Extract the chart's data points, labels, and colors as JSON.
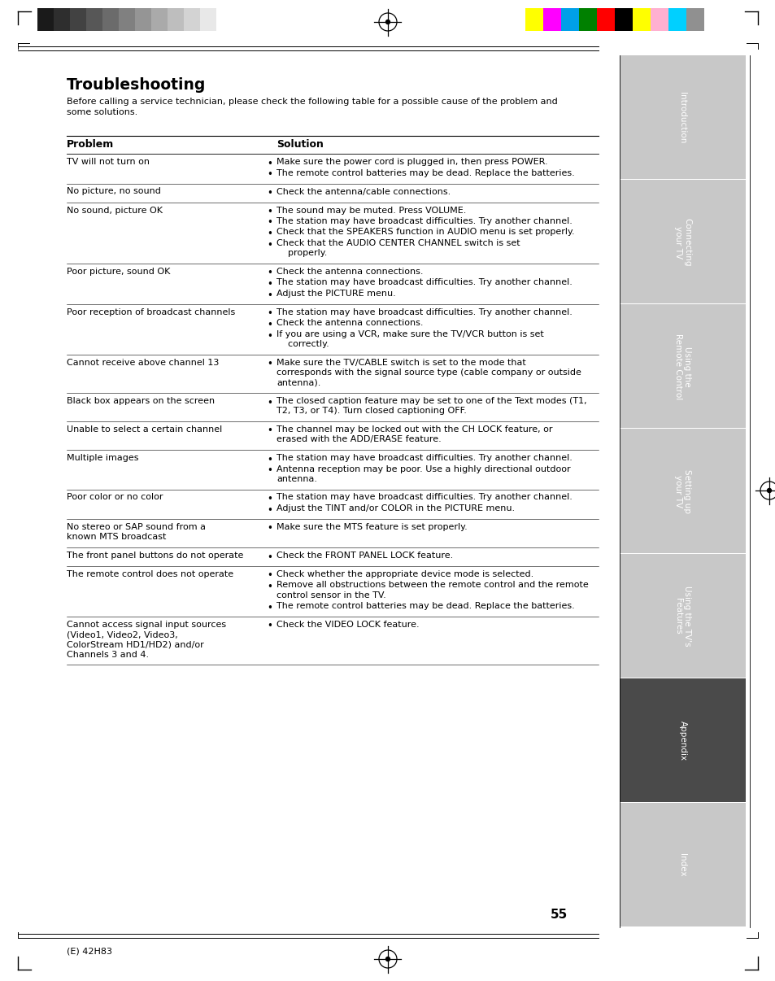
{
  "title": "Troubleshooting",
  "intro": "Before calling a service technician, please check the following table for a possible cause of the problem and\nsome solutions.",
  "col_problem": "Problem",
  "col_solution": "Solution",
  "page_number": "55",
  "footer_text": "(E) 42H83",
  "sidebar_labels": [
    "Introduction",
    "Connecting\nyour TV",
    "Using the\nRemote Control",
    "Setting up\nyour TV",
    "Using the TV's\nFeatures",
    "Appendix",
    "Index"
  ],
  "sidebar_active": 5,
  "rows": [
    {
      "problem": "TV will not turn on",
      "solutions": [
        "Make sure the power cord is plugged in, then press POWER.",
        "The remote control batteries may be dead. Replace the batteries."
      ]
    },
    {
      "problem": "No picture, no sound",
      "solutions": [
        "Check the antenna/cable connections."
      ]
    },
    {
      "problem": "No sound, picture OK",
      "solutions": [
        "The sound may be muted. Press VOLUME.",
        "The station may have broadcast difficulties. Try another channel.",
        "Check that the SPEAKERS function in AUDIO menu is set properly.",
        "Check that the AUDIO CENTER CHANNEL switch is set\n    properly."
      ]
    },
    {
      "problem": "Poor picture, sound OK",
      "solutions": [
        "Check the antenna connections.",
        "The station may have broadcast difficulties. Try another channel.",
        "Adjust the PICTURE menu."
      ]
    },
    {
      "problem": "Poor reception of broadcast channels",
      "solutions": [
        "The station may have broadcast difficulties. Try another channel.",
        "Check the antenna connections.",
        "If you are using a VCR, make sure the TV/VCR button is set\n    correctly."
      ]
    },
    {
      "problem": "Cannot receive above channel 13",
      "solutions": [
        "Make sure the TV/CABLE switch is set to the mode that\ncorresponds with the signal source type (cable company or outside\nantenna)."
      ]
    },
    {
      "problem": "Black box appears on the screen",
      "solutions": [
        "The closed caption feature may be set to one of the Text modes (T1,\nT2, T3, or T4). Turn closed captioning OFF."
      ]
    },
    {
      "problem": "Unable to select a certain channel",
      "solutions": [
        "The channel may be locked out with the CH LOCK feature, or\nerased with the ADD/ERASE feature."
      ]
    },
    {
      "problem": "Multiple images",
      "solutions": [
        "The station may have broadcast difficulties. Try another channel.",
        "Antenna reception may be poor. Use a highly directional outdoor\nantenna."
      ]
    },
    {
      "problem": "Poor color or no color",
      "solutions": [
        "The station may have broadcast difficulties. Try another channel.",
        "Adjust the TINT and/or COLOR in the PICTURE menu."
      ]
    },
    {
      "problem": "No stereo or SAP sound from a\nknown MTS broadcast",
      "solutions": [
        "Make sure the MTS feature is set properly."
      ]
    },
    {
      "problem": "The front panel buttons do not operate",
      "solutions": [
        "Check the FRONT PANEL LOCK feature."
      ]
    },
    {
      "problem": "The remote control does not operate",
      "solutions": [
        "Check whether the appropriate device mode is selected.",
        "Remove all obstructions between the remote control and the remote\ncontrol sensor in the TV.",
        "The remote control batteries may be dead. Replace the batteries."
      ]
    },
    {
      "problem": "Cannot access signal input sources\n(Video1, Video2, Video3,\nColorStream HD1/HD2) and/or\nChannels 3 and 4.",
      "solutions": [
        "Check the VIDEO LOCK feature."
      ]
    }
  ],
  "bg_color": "#ffffff",
  "sidebar_bg_light": "#c8c8c8",
  "sidebar_bg_dark": "#4a4a4a",
  "sidebar_text_color": "#ffffff",
  "gray_bar_colors": [
    "#1a1a1a",
    "#2e2e2e",
    "#424242",
    "#575757",
    "#6b6b6b",
    "#808080",
    "#959595",
    "#aaaaaa",
    "#bebebe",
    "#d3d3d3",
    "#e8e8e8"
  ],
  "color_bar_colors": [
    "#ffff00",
    "#ff00ff",
    "#00a0e8",
    "#008000",
    "#ff0000",
    "#000000",
    "#ffff00",
    "#ffb0d0",
    "#00d0ff",
    "#909090"
  ]
}
